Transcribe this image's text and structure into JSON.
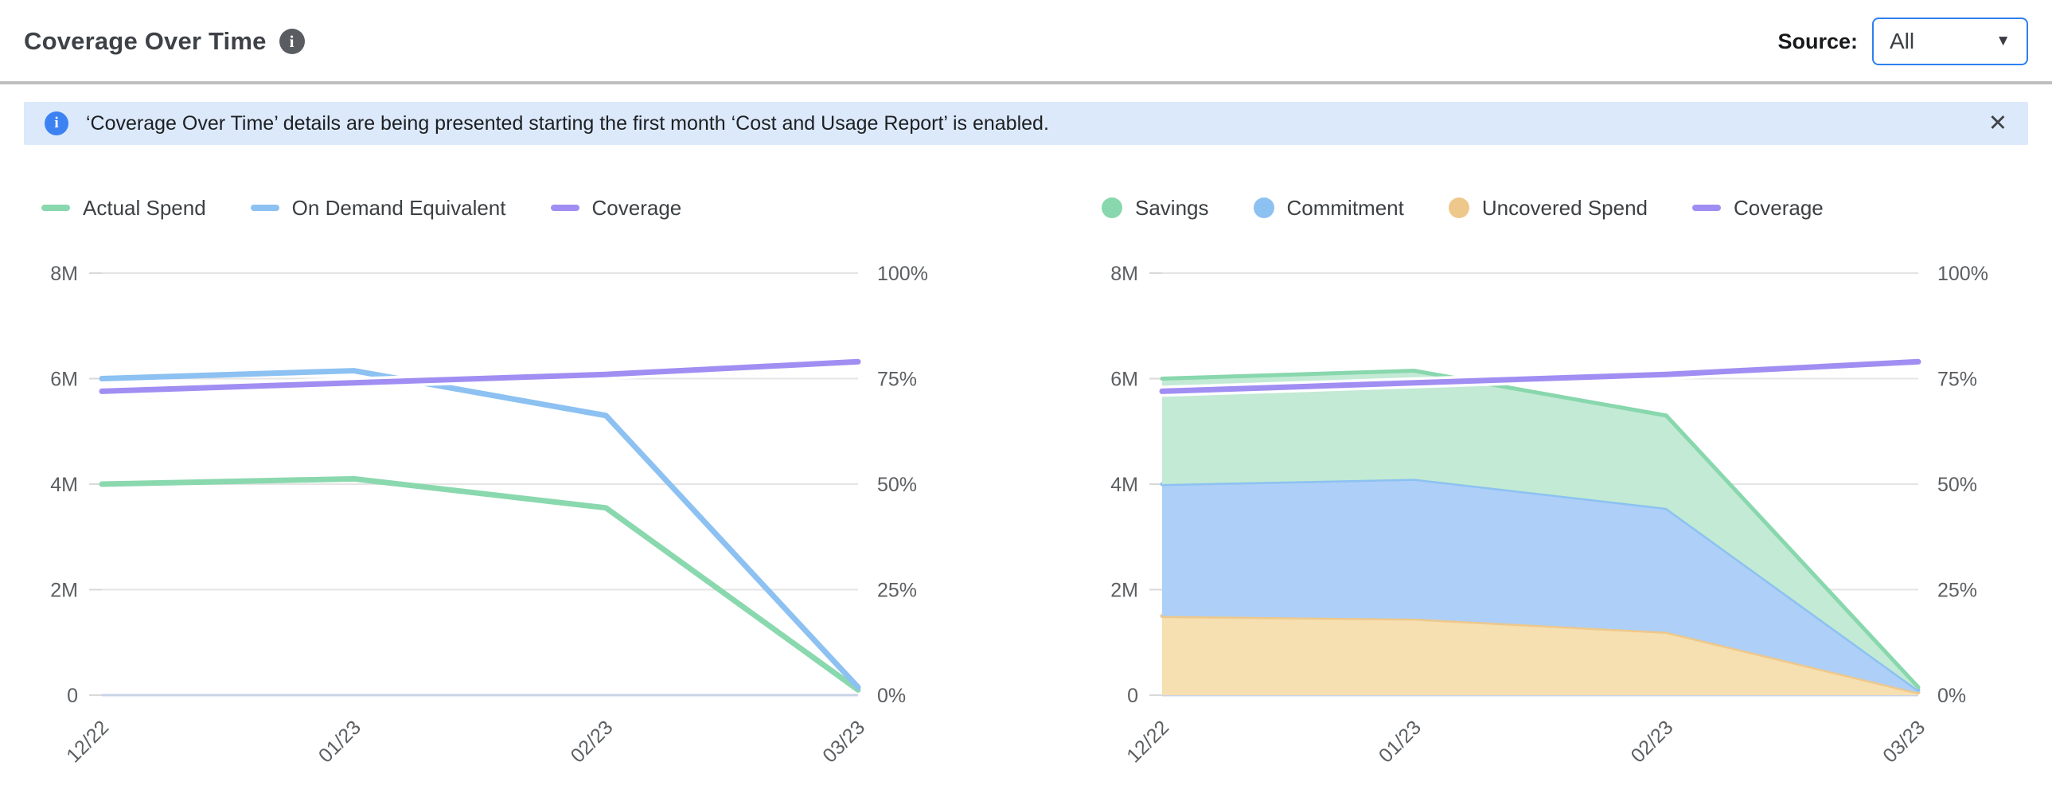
{
  "header": {
    "title": "Coverage Over Time",
    "source_label": "Source:",
    "source_value": "All"
  },
  "icons": {
    "title_info": "i",
    "banner_info": "i",
    "close": "✕",
    "dropdown_arrow": "▼"
  },
  "banner": {
    "text": "‘Coverage Over Time’ details are being presented starting the first month ‘Cost and Usage Report’ is enabled."
  },
  "colors": {
    "accent_blue": "#2f80ed",
    "banner_bg": "#dbe9fb",
    "banner_icon": "#3d82f2",
    "green": "#88d7ad",
    "green_fill": "#c2ead4",
    "blue": "#8cc1f2",
    "blue_fill": "#aecff7",
    "orange": "#eec88b",
    "orange_fill": "#f6dfb0",
    "purple": "#a18ef2",
    "axis_text": "#5c5f62",
    "gridline": "#e4e4e4",
    "zero_line": "#c9d3e8"
  },
  "chart_data": [
    {
      "type": "line",
      "title": "",
      "categories": [
        "12/22",
        "01/23",
        "02/23",
        "03/23"
      ],
      "x_label_rotation_deg": 45,
      "grid": true,
      "legend_position": "top",
      "left_axis": {
        "label": "",
        "ticks": [
          "0",
          "2M",
          "4M",
          "6M",
          "8M"
        ],
        "max_millions": 8,
        "ylim": [
          0,
          8000000
        ]
      },
      "right_axis": {
        "label": "",
        "ticks": [
          "0%",
          "25%",
          "50%",
          "75%",
          "100%"
        ],
        "max_percent": 100,
        "ylim": [
          0,
          100
        ]
      },
      "series": [
        {
          "name": "Actual Spend",
          "axis": "left",
          "values_millions": [
            4.0,
            4.1,
            3.55,
            0.1
          ],
          "color": "#8ad8ae"
        },
        {
          "name": "On Demand Equivalent",
          "axis": "left",
          "values_millions": [
            6.0,
            6.15,
            5.3,
            0.15
          ],
          "color": "#8cc1f2"
        },
        {
          "name": "Coverage",
          "axis": "right",
          "values_percent": [
            72,
            74,
            76,
            79
          ],
          "color": "#a18ef2"
        }
      ]
    },
    {
      "type": "area",
      "stacked": true,
      "title": "",
      "categories": [
        "12/22",
        "01/23",
        "02/23",
        "03/23"
      ],
      "x_label_rotation_deg": 45,
      "grid": true,
      "legend_position": "top",
      "left_axis": {
        "label": "",
        "ticks": [
          "0",
          "2M",
          "4M",
          "6M",
          "8M"
        ],
        "max_millions": 8,
        "ylim": [
          0,
          8000000
        ]
      },
      "right_axis": {
        "label": "",
        "ticks": [
          "0%",
          "25%",
          "50%",
          "75%",
          "100%"
        ],
        "max_percent": 100,
        "ylim": [
          0,
          100
        ]
      },
      "series": [
        {
          "name": "Savings",
          "axis": "left",
          "stack": 3,
          "segment_millions": [
            2.0,
            2.05,
            1.75,
            0.05
          ],
          "color": "#88d7ad",
          "fill": "#c2ead4"
        },
        {
          "name": "Commitment",
          "axis": "left",
          "stack": 2,
          "segment_millions": [
            2.5,
            2.65,
            2.35,
            0.05
          ],
          "color": "#8cc1f2",
          "fill": "#aecff7"
        },
        {
          "name": "Uncovered Spend",
          "axis": "left",
          "stack": 1,
          "segment_millions": [
            1.5,
            1.45,
            1.2,
            0.05
          ],
          "color": "#eec88b",
          "fill": "#f6dfb0"
        },
        {
          "name": "Coverage",
          "axis": "right",
          "values_percent": [
            72,
            74,
            76,
            79
          ],
          "color": "#a18ef2"
        }
      ],
      "stacked_totals_millions": [
        6.0,
        6.15,
        5.3,
        0.15
      ]
    }
  ]
}
